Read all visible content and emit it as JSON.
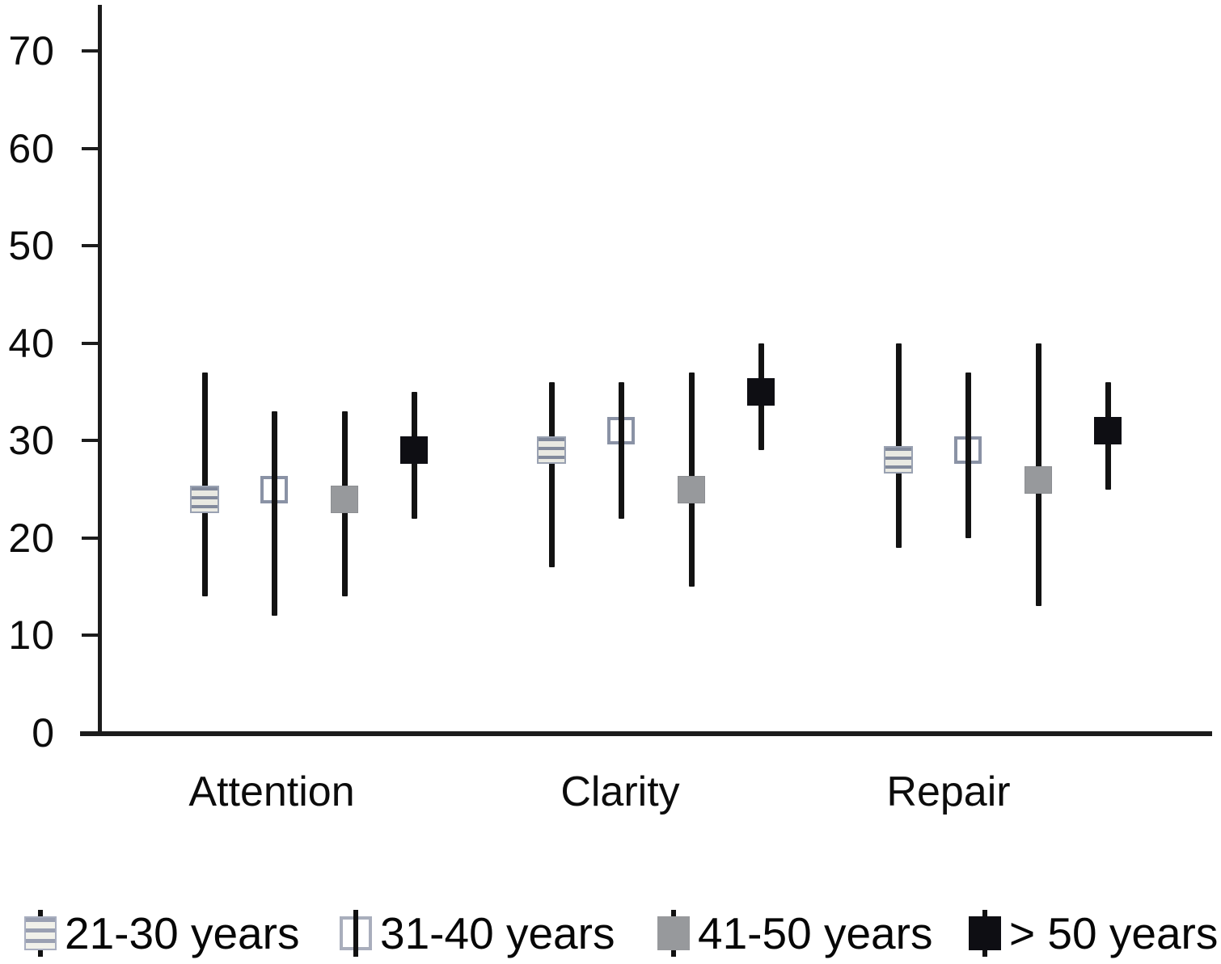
{
  "figure": {
    "background": "#ffffff",
    "axis_color": "#1c1c1c"
  },
  "y_axis": {
    "min": 0,
    "max": 70,
    "ticks": [
      {
        "label": "0",
        "value": 0
      },
      {
        "label": "10",
        "value": 10
      },
      {
        "label": "20",
        "value": 20
      },
      {
        "label": "30",
        "value": 30
      },
      {
        "label": "40",
        "value": 40
      },
      {
        "label": "50",
        "value": 50
      },
      {
        "label": "60",
        "value": 60
      },
      {
        "label": "70",
        "value": 70
      }
    ]
  },
  "x_axis": {
    "categories": [
      "Attention",
      "Clarity",
      "Repair"
    ]
  },
  "legend": {
    "position": "bottom",
    "entries": [
      {
        "label": "21-30 years",
        "marker": "striped-square-icon"
      },
      {
        "label": "31-40 years",
        "marker": "open-square-icon"
      },
      {
        "label": "41-50 years",
        "marker": "gray-square-icon"
      },
      {
        "label": "> 50 years",
        "marker": "black-square-icon"
      }
    ]
  },
  "colors": {
    "line": "#121212",
    "striped_band_dark": "#828a9c",
    "striped_band_light": "#e9e9e2",
    "open_border": "#8a92a5",
    "gray_fill": "#97999c",
    "black_fill": "#0e0e13"
  },
  "chart_data": {
    "type": "scatter",
    "subtype": "dot-with-range-error-bars",
    "title": "",
    "xlabel": "",
    "ylabel": "",
    "ylim": [
      0,
      70
    ],
    "yticks": [
      0,
      10,
      20,
      30,
      40,
      50,
      60,
      70
    ],
    "grid": false,
    "legend_position": "bottom",
    "categories": [
      "Attention",
      "Clarity",
      "Repair"
    ],
    "series": [
      {
        "name": "21-30 years",
        "marker": "striped",
        "points": [
          {
            "category": "Attention",
            "value": 24,
            "low": 14,
            "high": 37
          },
          {
            "category": "Clarity",
            "value": 29,
            "low": 17,
            "high": 36
          },
          {
            "category": "Repair",
            "value": 28,
            "low": 19,
            "high": 40
          }
        ]
      },
      {
        "name": "31-40 years",
        "marker": "open",
        "points": [
          {
            "category": "Attention",
            "value": 25,
            "low": 12,
            "high": 33
          },
          {
            "category": "Clarity",
            "value": 31,
            "low": 22,
            "high": 36
          },
          {
            "category": "Repair",
            "value": 29,
            "low": 20,
            "high": 37
          }
        ]
      },
      {
        "name": "41-50 years",
        "marker": "gray",
        "points": [
          {
            "category": "Attention",
            "value": 24,
            "low": 14,
            "high": 33
          },
          {
            "category": "Clarity",
            "value": 25,
            "low": 15,
            "high": 37
          },
          {
            "category": "Repair",
            "value": 26,
            "low": 13,
            "high": 40
          }
        ]
      },
      {
        "name": "> 50 years",
        "marker": "black",
        "points": [
          {
            "category": "Attention",
            "value": 29,
            "low": 22,
            "high": 35
          },
          {
            "category": "Clarity",
            "value": 35,
            "low": 29,
            "high": 40
          },
          {
            "category": "Repair",
            "value": 31,
            "low": 25,
            "high": 36
          }
        ]
      }
    ]
  }
}
